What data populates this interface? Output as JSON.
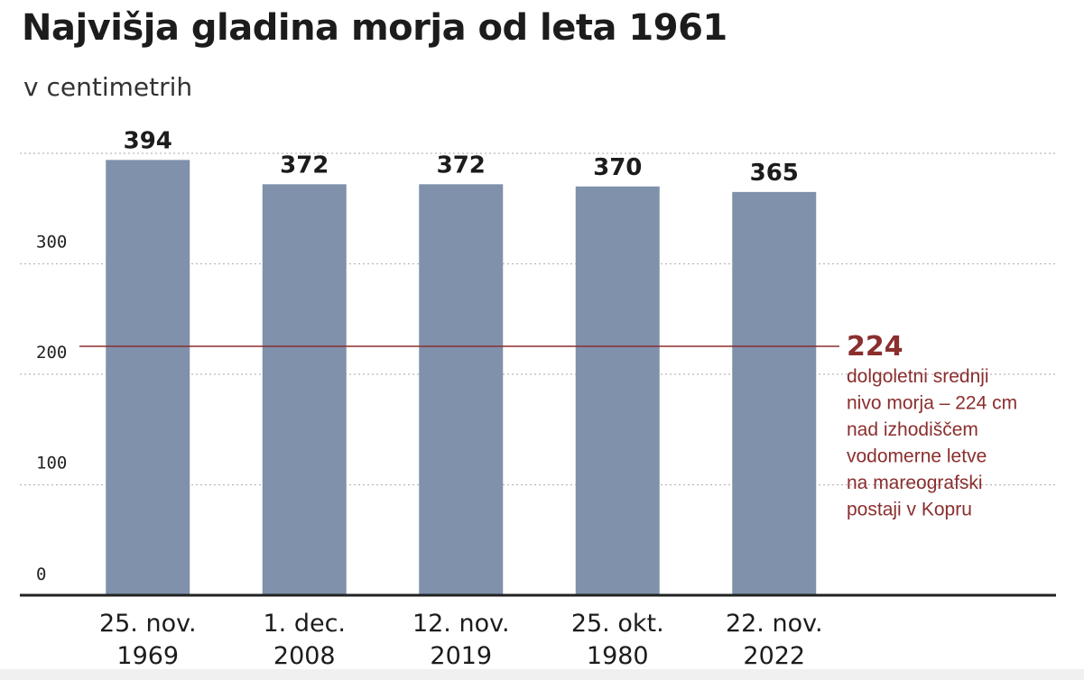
{
  "header": {
    "title": "Najvišja gladina morja od leta 1961",
    "subtitle": "v centimetrih"
  },
  "chart_data": {
    "type": "bar",
    "categories": [
      [
        "25. nov.",
        "1969"
      ],
      [
        "1. dec.",
        "2008"
      ],
      [
        "12. nov.",
        "2019"
      ],
      [
        "25. okt.",
        "1980"
      ],
      [
        "22. nov.",
        "2022"
      ]
    ],
    "values": [
      394,
      372,
      372,
      370,
      365
    ],
    "data_labels": [
      "394",
      "372",
      "372",
      "370",
      "365"
    ],
    "ylim": [
      0,
      400
    ],
    "yticks": [
      0,
      100,
      200,
      300,
      400
    ],
    "ytick_labels": [
      "0",
      "100",
      "200",
      "300",
      ""
    ],
    "grid": "dotted horizontal",
    "reference_line": {
      "value": 224,
      "label": "224",
      "note": [
        "dolgoletni srednji",
        "nivo morja – 224 cm",
        "nad izhodiščem",
        "vodomerne letve",
        "na mareografski",
        "postaji v Kopru"
      ]
    },
    "colors": {
      "bar": "#7f91ab",
      "reference": "#8b2e2e",
      "grid": "#b9b9b9",
      "axis": "#222222"
    }
  }
}
